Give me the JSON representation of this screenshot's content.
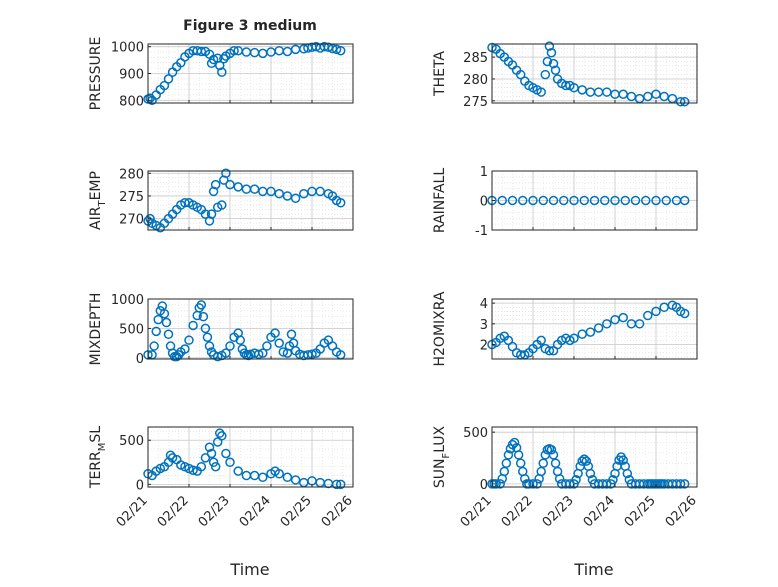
{
  "figure": {
    "title": "Figure 3 medium",
    "xlabel_left": "Time",
    "xlabel_right": "Time",
    "marker_color": "#0072bd",
    "x_tick_labels": [
      "02/21",
      "02/22",
      "02/23",
      "02/24",
      "02/25",
      "02/26"
    ]
  },
  "chart_data": [
    {
      "type": "scatter",
      "ylabel": "PRESSURE",
      "ylim": [
        790,
        1010
      ],
      "yticks": [
        800,
        900,
        1000
      ],
      "ytick_labels": [
        "800",
        "900",
        "1000"
      ],
      "xlim": [
        0,
        5
      ],
      "grid": true,
      "marker": "open-circle",
      "x": [
        0.0,
        0.05,
        0.1,
        0.2,
        0.3,
        0.4,
        0.5,
        0.6,
        0.7,
        0.8,
        0.9,
        1.0,
        1.1,
        1.2,
        1.3,
        1.4,
        1.5,
        1.55,
        1.6,
        1.7,
        1.75,
        1.8,
        1.85,
        1.9,
        2.0,
        2.1,
        2.2,
        2.4,
        2.6,
        2.8,
        3.0,
        3.2,
        3.4,
        3.6,
        3.8,
        3.9,
        4.0,
        4.1,
        4.2,
        4.3,
        4.4,
        4.5,
        4.6,
        4.7
      ],
      "y": [
        805,
        808,
        800,
        820,
        840,
        855,
        880,
        905,
        925,
        940,
        962,
        975,
        985,
        985,
        982,
        982,
        972,
        938,
        952,
        957,
        930,
        905,
        955,
        965,
        975,
        985,
        985,
        980,
        978,
        975,
        980,
        985,
        982,
        990,
        992,
        995,
        998,
        1000,
        995,
        1000,
        998,
        993,
        990,
        985
      ]
    },
    {
      "type": "scatter",
      "ylabel": "THETA",
      "ylim": [
        274.5,
        288
      ],
      "yticks": [
        275,
        280,
        285
      ],
      "ytick_labels": [
        "275",
        "280",
        "285"
      ],
      "xlim": [
        0,
        5
      ],
      "grid": true,
      "marker": "open-circle",
      "x": [
        0.0,
        0.1,
        0.2,
        0.3,
        0.4,
        0.5,
        0.6,
        0.7,
        0.8,
        0.9,
        1.0,
        1.1,
        1.2,
        1.3,
        1.35,
        1.4,
        1.45,
        1.5,
        1.55,
        1.6,
        1.7,
        1.8,
        1.9,
        2.0,
        2.2,
        2.4,
        2.6,
        2.8,
        3.0,
        3.2,
        3.4,
        3.6,
        3.8,
        4.0,
        4.2,
        4.4,
        4.6,
        4.7
      ],
      "y": [
        287.2,
        286.8,
        285.8,
        285.0,
        284.0,
        283.2,
        282.0,
        281.0,
        279.5,
        278.5,
        278.0,
        277.5,
        277.0,
        281.0,
        284.0,
        287.5,
        286.0,
        283.5,
        282.0,
        280.0,
        279.0,
        278.5,
        278.5,
        278.0,
        277.5,
        277.0,
        277.0,
        277.0,
        276.5,
        276.5,
        276.0,
        275.5,
        276.0,
        276.5,
        276.0,
        275.5,
        274.8,
        274.8
      ]
    },
    {
      "type": "scatter",
      "ylabel": "AIR_TEMP",
      "ylabel_main": "AIR",
      "ylabel_sub": "T",
      "ylabel_tail": "EMP",
      "ylim": [
        267.5,
        280.5
      ],
      "yticks": [
        270,
        275,
        280
      ],
      "ytick_labels": [
        "270",
        "275",
        "280"
      ],
      "xlim": [
        0,
        5
      ],
      "grid": true,
      "marker": "open-circle",
      "x": [
        0.0,
        0.05,
        0.1,
        0.2,
        0.3,
        0.4,
        0.5,
        0.6,
        0.7,
        0.8,
        0.9,
        1.0,
        1.1,
        1.2,
        1.3,
        1.4,
        1.5,
        1.55,
        1.6,
        1.65,
        1.7,
        1.8,
        1.85,
        1.9,
        2.0,
        2.2,
        2.4,
        2.6,
        2.8,
        3.0,
        3.2,
        3.4,
        3.6,
        3.8,
        4.0,
        4.2,
        4.4,
        4.5,
        4.6,
        4.7
      ],
      "y": [
        269.5,
        270.0,
        269.0,
        268.5,
        268.0,
        269.0,
        270.0,
        271.0,
        272.0,
        273.0,
        273.5,
        273.5,
        273.0,
        272.5,
        272.0,
        271.0,
        269.5,
        271.0,
        276.0,
        277.5,
        272.5,
        273.0,
        278.5,
        280.0,
        277.5,
        277.0,
        276.5,
        276.5,
        276.0,
        276.0,
        275.5,
        275.0,
        274.5,
        275.5,
        276.0,
        276.0,
        275.5,
        275.0,
        274.0,
        273.5
      ]
    },
    {
      "type": "scatter",
      "ylabel": "RAINFALL",
      "ylim": [
        -1,
        1
      ],
      "yticks": [
        -1,
        0,
        1
      ],
      "ytick_labels": [
        "-1",
        "0",
        "1"
      ],
      "xlim": [
        0,
        5
      ],
      "grid": true,
      "marker": "open-circle",
      "x": [
        0.0,
        0.25,
        0.5,
        0.75,
        1.0,
        1.25,
        1.5,
        1.75,
        2.0,
        2.25,
        2.5,
        2.75,
        3.0,
        3.25,
        3.5,
        3.75,
        4.0,
        4.25,
        4.5,
        4.7
      ],
      "y": [
        0,
        0,
        0,
        0,
        0,
        0,
        0,
        0,
        0,
        0,
        0,
        0,
        0,
        0,
        0,
        0,
        0,
        0,
        0,
        0
      ]
    },
    {
      "type": "scatter",
      "ylabel": "MIXDEPTH",
      "ylim": [
        -20,
        1000
      ],
      "yticks": [
        0,
        500,
        1000
      ],
      "ytick_labels": [
        "0",
        "500",
        "1000"
      ],
      "xlim": [
        0,
        5
      ],
      "grid": true,
      "marker": "open-circle",
      "x": [
        0.0,
        0.1,
        0.15,
        0.2,
        0.25,
        0.3,
        0.35,
        0.4,
        0.45,
        0.5,
        0.55,
        0.6,
        0.65,
        0.7,
        0.75,
        0.8,
        0.9,
        1.0,
        1.1,
        1.2,
        1.25,
        1.3,
        1.35,
        1.4,
        1.45,
        1.5,
        1.55,
        1.6,
        1.7,
        1.8,
        1.9,
        2.0,
        2.1,
        2.2,
        2.25,
        2.3,
        2.35,
        2.4,
        2.45,
        2.5,
        2.6,
        2.7,
        2.8,
        2.9,
        3.0,
        3.1,
        3.2,
        3.3,
        3.4,
        3.45,
        3.5,
        3.55,
        3.6,
        3.7,
        3.8,
        3.9,
        4.0,
        4.1,
        4.2,
        4.3,
        4.4,
        4.5,
        4.6,
        4.7
      ],
      "y": [
        50,
        50,
        200,
        450,
        650,
        800,
        880,
        750,
        600,
        400,
        200,
        80,
        20,
        20,
        50,
        100,
        150,
        300,
        550,
        720,
        850,
        900,
        700,
        500,
        350,
        200,
        100,
        50,
        20,
        40,
        80,
        200,
        350,
        420,
        300,
        150,
        80,
        50,
        40,
        60,
        80,
        60,
        80,
        200,
        350,
        420,
        250,
        100,
        80,
        200,
        400,
        250,
        120,
        60,
        40,
        50,
        60,
        80,
        150,
        250,
        300,
        200,
        100,
        50
      ]
    },
    {
      "type": "scatter",
      "ylabel": "H2OMIXRA",
      "ylim": [
        1.3,
        4.2
      ],
      "yticks": [
        2,
        3,
        4
      ],
      "ytick_labels": [
        "2",
        "3",
        "4"
      ],
      "xlim": [
        0,
        5
      ],
      "grid": true,
      "marker": "open-circle",
      "x": [
        0.0,
        0.1,
        0.2,
        0.3,
        0.4,
        0.5,
        0.6,
        0.7,
        0.8,
        0.9,
        1.0,
        1.1,
        1.2,
        1.3,
        1.4,
        1.5,
        1.6,
        1.7,
        1.8,
        1.9,
        2.0,
        2.2,
        2.4,
        2.6,
        2.8,
        3.0,
        3.2,
        3.4,
        3.6,
        3.8,
        4.0,
        4.2,
        4.4,
        4.5,
        4.6,
        4.7
      ],
      "y": [
        2.0,
        2.1,
        2.3,
        2.4,
        2.2,
        1.9,
        1.6,
        1.5,
        1.5,
        1.6,
        1.8,
        2.0,
        2.2,
        1.8,
        1.7,
        1.7,
        2.0,
        2.2,
        2.3,
        2.2,
        2.3,
        2.5,
        2.6,
        2.8,
        3.0,
        3.2,
        3.3,
        3.0,
        3.0,
        3.4,
        3.6,
        3.8,
        3.9,
        3.8,
        3.6,
        3.5
      ]
    },
    {
      "type": "scatter",
      "ylabel": "TERR_MSL",
      "ylabel_main": "TERR",
      "ylabel_sub": "M",
      "ylabel_tail": "SL",
      "ylim": [
        -30,
        650
      ],
      "yticks": [
        0,
        500
      ],
      "ytick_labels": [
        "0",
        "500"
      ],
      "xlim": [
        0,
        5
      ],
      "grid": true,
      "marker": "open-circle",
      "x": [
        0.0,
        0.1,
        0.2,
        0.3,
        0.4,
        0.5,
        0.55,
        0.6,
        0.7,
        0.8,
        0.9,
        1.0,
        1.1,
        1.2,
        1.3,
        1.4,
        1.5,
        1.55,
        1.6,
        1.65,
        1.7,
        1.75,
        1.8,
        1.9,
        2.0,
        2.2,
        2.4,
        2.6,
        2.8,
        3.0,
        3.1,
        3.2,
        3.4,
        3.6,
        3.8,
        4.0,
        4.2,
        4.4,
        4.6,
        4.7
      ],
      "y": [
        120,
        100,
        150,
        180,
        200,
        250,
        330,
        300,
        280,
        220,
        200,
        180,
        160,
        150,
        200,
        300,
        420,
        350,
        250,
        200,
        480,
        580,
        550,
        350,
        250,
        150,
        100,
        100,
        80,
        120,
        150,
        120,
        80,
        50,
        20,
        40,
        20,
        10,
        0,
        0
      ]
    },
    {
      "type": "scatter",
      "ylabel": "SUN_FLUX",
      "ylabel_main": "SUN",
      "ylabel_sub": "F",
      "ylabel_tail": "LUX",
      "ylim": [
        -30,
        550
      ],
      "yticks": [
        0,
        500
      ],
      "ytick_labels": [
        "0",
        "500"
      ],
      "xlim": [
        0,
        5
      ],
      "grid": true,
      "marker": "open-circle",
      "x": [
        0.0,
        0.05,
        0.1,
        0.2,
        0.25,
        0.3,
        0.35,
        0.4,
        0.45,
        0.5,
        0.55,
        0.6,
        0.65,
        0.7,
        0.75,
        0.8,
        0.85,
        0.9,
        1.0,
        1.1,
        1.15,
        1.2,
        1.25,
        1.3,
        1.35,
        1.4,
        1.45,
        1.5,
        1.55,
        1.6,
        1.65,
        1.7,
        1.8,
        1.9,
        2.0,
        2.05,
        2.1,
        2.15,
        2.2,
        2.25,
        2.3,
        2.35,
        2.4,
        2.45,
        2.5,
        2.6,
        2.7,
        2.8,
        2.9,
        2.95,
        3.0,
        3.05,
        3.1,
        3.15,
        3.2,
        3.25,
        3.3,
        3.35,
        3.4,
        3.5,
        3.6,
        3.7,
        3.8,
        3.85,
        3.9,
        3.95,
        4.0,
        4.05,
        4.1,
        4.15,
        4.2,
        4.3,
        4.4,
        4.5,
        4.6,
        4.7
      ],
      "y": [
        0,
        0,
        0,
        0,
        50,
        120,
        200,
        280,
        340,
        380,
        400,
        350,
        280,
        200,
        120,
        50,
        0,
        0,
        0,
        0,
        50,
        120,
        200,
        280,
        330,
        340,
        330,
        280,
        200,
        120,
        50,
        0,
        0,
        0,
        0,
        40,
        100,
        170,
        220,
        240,
        220,
        170,
        100,
        40,
        0,
        0,
        0,
        0,
        0,
        40,
        100,
        170,
        230,
        260,
        230,
        170,
        100,
        40,
        0,
        0,
        0,
        0,
        0,
        0,
        0,
        0,
        0,
        0,
        0,
        0,
        0,
        0,
        0,
        0,
        0,
        0
      ]
    }
  ]
}
